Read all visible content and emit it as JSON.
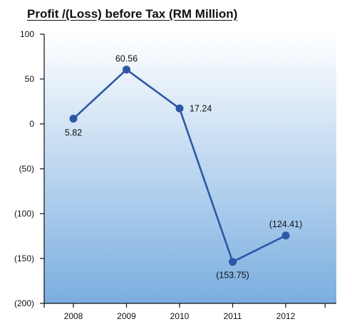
{
  "chart_data": {
    "type": "line",
    "title": "Profit /(Loss) before Tax (RM Million)",
    "xlabel": "",
    "ylabel": "",
    "categories": [
      "2008",
      "2009",
      "2010",
      "2011",
      "2012"
    ],
    "values": [
      5.82,
      60.56,
      17.24,
      -153.75,
      -124.41
    ],
    "data_labels": [
      "5.82",
      "60.56",
      "17.24",
      "(153.75)",
      "(124.41)"
    ],
    "ylim": [
      -200,
      100
    ],
    "yticks": [
      100,
      50,
      0,
      -50,
      -100,
      -150,
      -200
    ],
    "ytick_labels": [
      "100",
      "50",
      "0",
      "(50)",
      "(100)",
      "(150)",
      "(200)"
    ],
    "grid": false,
    "legend": "none",
    "colors": {
      "line": "#2a58a8",
      "marker": "#2a58a8",
      "background_top": "#ffffff",
      "background_bottom": "#7aaee0",
      "axis": "#111111"
    }
  }
}
